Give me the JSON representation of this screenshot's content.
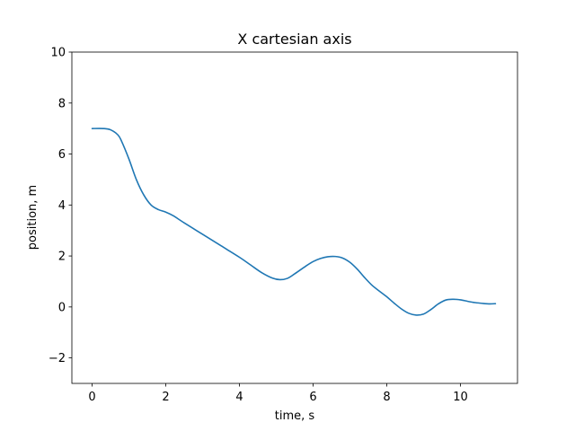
{
  "chart_data": {
    "type": "line",
    "title": "X cartesian axis",
    "xlabel": "time, s",
    "ylabel": "position, m",
    "xlim": [
      -0.55,
      11.55
    ],
    "ylim": [
      -3,
      10
    ],
    "xticks": [
      0,
      2,
      4,
      6,
      8,
      10
    ],
    "yticks": [
      -2,
      0,
      2,
      4,
      6,
      8,
      10
    ],
    "grid": false,
    "series": [
      {
        "color": "#1f77b4",
        "x": [
          0,
          0.3,
          0.5,
          0.7,
          0.8,
          1.0,
          1.2,
          1.4,
          1.6,
          1.8,
          2.0,
          2.2,
          2.5,
          3.0,
          3.5,
          4.0,
          4.3,
          4.6,
          4.9,
          5.1,
          5.3,
          5.5,
          5.8,
          6.0,
          6.2,
          6.4,
          6.6,
          6.8,
          7.0,
          7.2,
          7.4,
          7.6,
          7.8,
          8.0,
          8.2,
          8.4,
          8.6,
          8.8,
          9.0,
          9.2,
          9.4,
          9.6,
          9.8,
          10.0,
          10.2,
          10.4,
          10.6,
          10.8,
          10.95
        ],
        "y": [
          7.0,
          7.0,
          6.95,
          6.75,
          6.5,
          5.8,
          5.0,
          4.4,
          4.0,
          3.82,
          3.72,
          3.58,
          3.3,
          2.85,
          2.4,
          1.95,
          1.65,
          1.35,
          1.13,
          1.07,
          1.12,
          1.3,
          1.6,
          1.78,
          1.9,
          1.97,
          1.98,
          1.92,
          1.75,
          1.48,
          1.15,
          0.85,
          0.62,
          0.4,
          0.15,
          -0.08,
          -0.25,
          -0.32,
          -0.28,
          -0.1,
          0.12,
          0.27,
          0.3,
          0.28,
          0.22,
          0.17,
          0.14,
          0.12,
          0.13
        ]
      }
    ]
  }
}
